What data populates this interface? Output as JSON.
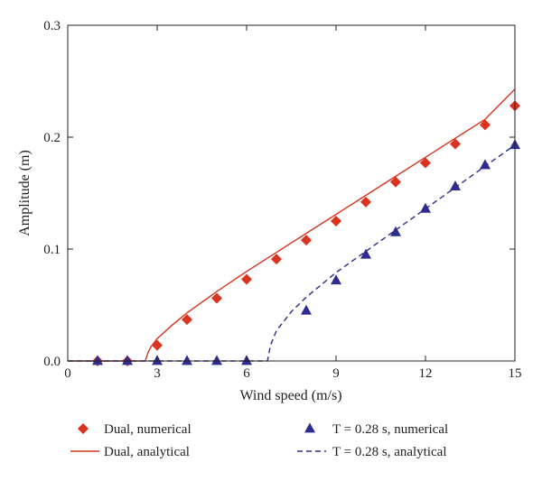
{
  "chart_data": {
    "type": "scatter",
    "title": "",
    "xlabel": "Wind speed (m/s)",
    "ylabel": "Amplitude (m)",
    "xlim": [
      0,
      15
    ],
    "ylim": [
      0,
      0.3
    ],
    "xticks": [
      0,
      3,
      6,
      9,
      12,
      15
    ],
    "yticks": [
      0.0,
      0.1,
      0.2,
      0.3
    ],
    "xtick_labels": [
      "0",
      "3",
      "6",
      "9",
      "12",
      "15"
    ],
    "ytick_labels": [
      "0.0",
      "0.1",
      "0.2",
      "0.3"
    ],
    "grid": false,
    "legend_position": "bottom",
    "series": [
      {
        "name": "Dual, numerical",
        "kind": "markers",
        "marker": "diamond",
        "color": "#d9341f",
        "x": [
          1,
          2,
          3,
          4,
          5,
          6,
          7,
          8,
          9,
          10,
          11,
          12,
          13,
          14,
          15
        ],
        "y": [
          0.0,
          0.0,
          0.014,
          0.037,
          0.056,
          0.073,
          0.091,
          0.108,
          0.125,
          0.142,
          0.16,
          0.177,
          0.194,
          0.211,
          0.228
        ]
      },
      {
        "name": "Dual, analytical",
        "kind": "line",
        "dash": "solid",
        "color": "#d9341f",
        "x": [
          0,
          2.6,
          2.7,
          2.8,
          3.0,
          3.5,
          4,
          5,
          6,
          7,
          8,
          9,
          10,
          11,
          12,
          13,
          14,
          15
        ],
        "y": [
          0.0,
          0.0,
          0.008,
          0.013,
          0.02,
          0.032,
          0.043,
          0.062,
          0.08,
          0.097,
          0.114,
          0.131,
          0.148,
          0.165,
          0.182,
          0.199,
          0.216,
          0.243
        ]
      },
      {
        "name": "T = 0.28 s, numerical",
        "kind": "markers",
        "marker": "triangle",
        "color": "#2e2d8f",
        "x": [
          1,
          2,
          3,
          4,
          5,
          6,
          8,
          9,
          10,
          11,
          12,
          13,
          14,
          15
        ],
        "y": [
          0.0,
          0.0,
          0.0,
          0.0,
          0.0,
          0.0,
          0.045,
          0.072,
          0.095,
          0.115,
          0.136,
          0.156,
          0.175,
          0.193
        ]
      },
      {
        "name": "T = 0.28 s, analytical",
        "kind": "line",
        "dash": "dashed",
        "color": "#2e2d8f",
        "x": [
          0,
          6.7,
          6.8,
          7.0,
          7.5,
          8,
          8.5,
          9,
          10,
          11,
          12,
          13,
          14,
          15
        ],
        "y": [
          0.0,
          0.0,
          0.014,
          0.027,
          0.044,
          0.057,
          0.068,
          0.079,
          0.098,
          0.117,
          0.136,
          0.155,
          0.174,
          0.193
        ]
      }
    ]
  },
  "legend": {
    "items": [
      {
        "label": "Dual, numerical",
        "marker": "diamond",
        "color": "#d9341f"
      },
      {
        "label": "T = 0.28 s, numerical",
        "marker": "triangle",
        "color": "#2e2d8f"
      },
      {
        "label": "Dual, analytical",
        "marker": "line-solid",
        "color": "#d9341f"
      },
      {
        "label": "T = 0.28 s, analytical",
        "marker": "line-dashed",
        "color": "#2e2d8f"
      }
    ]
  }
}
